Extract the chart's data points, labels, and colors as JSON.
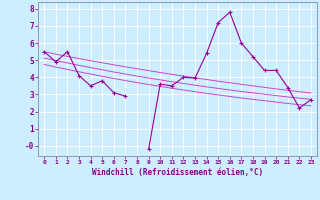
{
  "xlabel": "Windchill (Refroidissement éolien,°C)",
  "x_hours": [
    0,
    1,
    2,
    3,
    4,
    5,
    6,
    7,
    8,
    9,
    10,
    11,
    12,
    13,
    14,
    15,
    16,
    17,
    18,
    19,
    20,
    21,
    22,
    23
  ],
  "line_main": [
    5.5,
    4.9,
    5.5,
    4.1,
    3.5,
    3.8,
    3.1,
    2.9,
    null,
    -0.2,
    3.6,
    3.5,
    4.0,
    3.95,
    5.4,
    7.2,
    7.8,
    6.0,
    5.2,
    4.4,
    4.4,
    3.4,
    2.2,
    2.7
  ],
  "line_upper": [
    5.5,
    5.35,
    5.22,
    5.09,
    4.97,
    4.85,
    4.73,
    4.61,
    4.5,
    4.39,
    4.28,
    4.17,
    4.07,
    3.97,
    3.87,
    3.77,
    3.68,
    3.59,
    3.5,
    3.41,
    3.32,
    3.24,
    3.16,
    3.08
  ],
  "line_lower": [
    4.75,
    4.6,
    4.46,
    4.32,
    4.19,
    4.06,
    3.93,
    3.81,
    3.69,
    3.58,
    3.47,
    3.36,
    3.26,
    3.16,
    3.06,
    2.97,
    2.88,
    2.79,
    2.71,
    2.63,
    2.55,
    2.47,
    2.4,
    2.33
  ],
  "line_mid": [
    5.12,
    4.98,
    4.84,
    4.7,
    4.57,
    4.44,
    4.31,
    4.19,
    4.07,
    3.96,
    3.85,
    3.74,
    3.64,
    3.54,
    3.44,
    3.35,
    3.26,
    3.17,
    3.09,
    3.01,
    2.93,
    2.85,
    2.78,
    2.71
  ],
  "color_main": "#990099",
  "color_bands": "#cc44cc",
  "bg_color": "#cceeff",
  "grid_color": "#ffffff",
  "ylim": [
    -0.6,
    8.4
  ],
  "yticks": [
    0,
    1,
    2,
    3,
    4,
    5,
    6,
    7,
    8
  ],
  "ytick_labels": [
    "-0",
    "1",
    "2",
    "3",
    "4",
    "5",
    "6",
    "7",
    "8"
  ]
}
